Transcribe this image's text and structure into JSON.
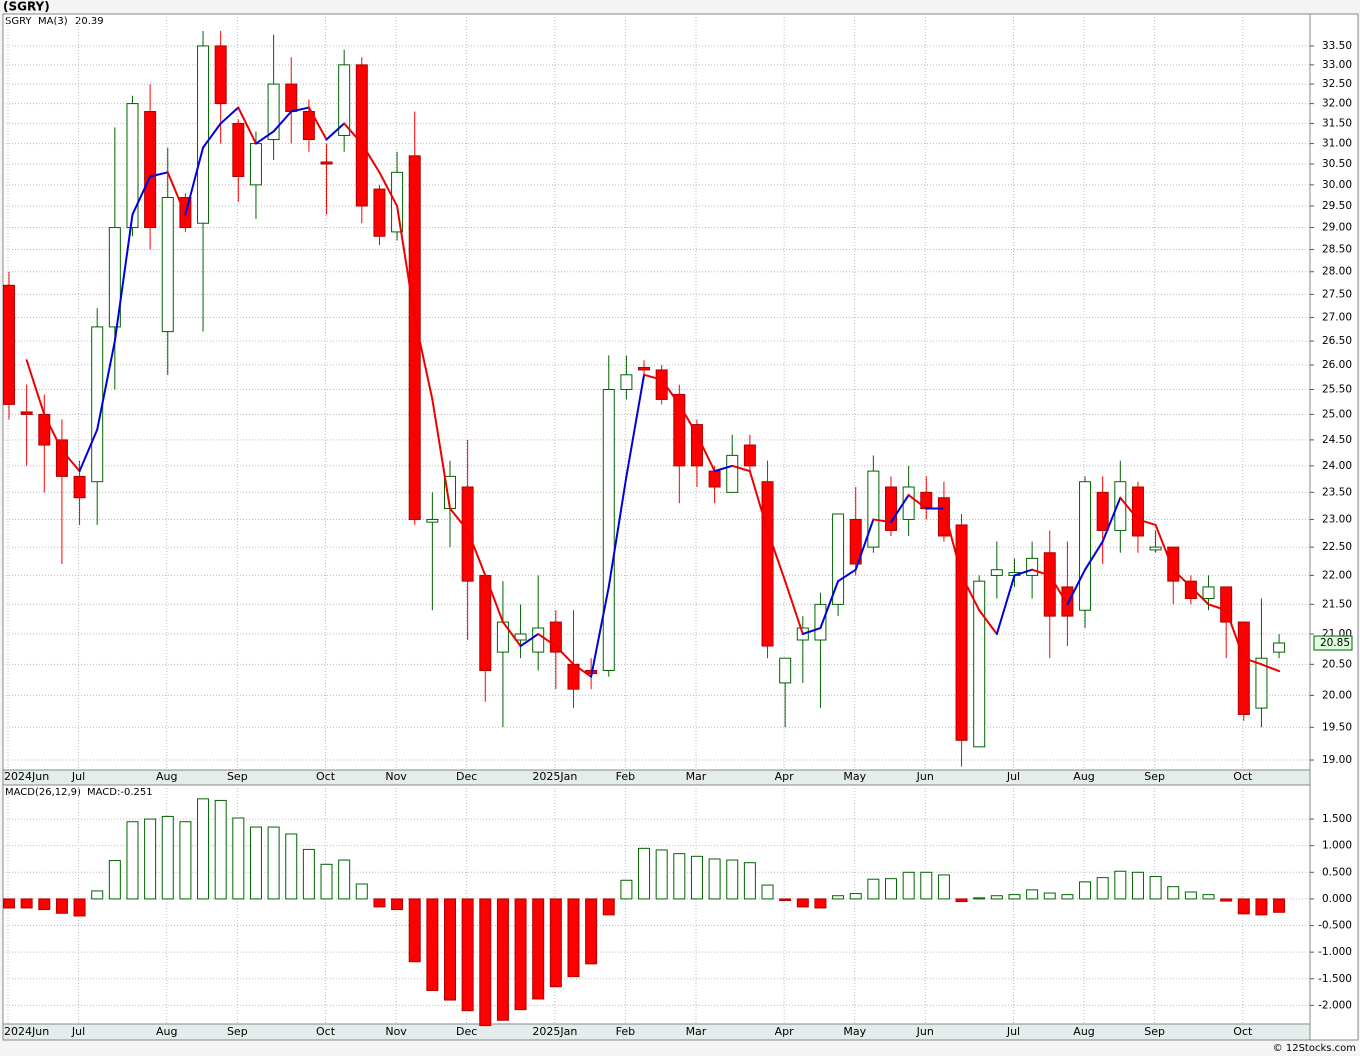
{
  "chart_data": [
    {
      "type": "candlestick",
      "title": "(SGRY)",
      "symbol": "SGRY",
      "categories": [
        "2024Jun",
        null,
        null,
        null,
        "Jul",
        null,
        null,
        null,
        null,
        "Aug",
        null,
        null,
        null,
        "Sep",
        null,
        null,
        null,
        null,
        "Oct",
        null,
        null,
        null,
        "Nov",
        null,
        null,
        null,
        "Dec",
        null,
        null,
        null,
        null,
        "2025Jan",
        null,
        null,
        null,
        "Feb",
        null,
        null,
        null,
        "Mar",
        null,
        null,
        null,
        null,
        "Apr",
        null,
        null,
        null,
        "May",
        null,
        null,
        null,
        "Jun",
        null,
        null,
        null,
        null,
        "Jul",
        null,
        null,
        null,
        "Aug",
        null,
        null,
        null,
        "Sep",
        null,
        null,
        null,
        null,
        "Oct",
        null,
        null
      ],
      "open": [
        27.7,
        25.05,
        25.0,
        24.5,
        23.8,
        23.7,
        26.8,
        29.0,
        31.8,
        26.7,
        29.7,
        29.1,
        33.5,
        31.5,
        30.0,
        31.1,
        32.5,
        31.8,
        30.55,
        31.2,
        33.0,
        29.9,
        28.9,
        30.7,
        22.95,
        23.2,
        23.6,
        22.0,
        20.7,
        20.9,
        20.7,
        21.2,
        20.5,
        20.4,
        20.4,
        25.5,
        25.95,
        25.9,
        25.4,
        24.8,
        23.9,
        23.5,
        24.4,
        23.7,
        20.2,
        20.9,
        20.9,
        21.5,
        23.0,
        22.5,
        23.6,
        23.0,
        23.5,
        23.4,
        22.9,
        19.2,
        22.0,
        22.0,
        22.0,
        22.4,
        21.8,
        21.4,
        23.5,
        22.8,
        23.6,
        22.45,
        22.5,
        21.9,
        21.6,
        21.8,
        21.2,
        19.8,
        20.7
      ],
      "high": [
        28.0,
        25.6,
        25.4,
        24.9,
        24.1,
        27.2,
        31.4,
        32.2,
        32.5,
        30.9,
        29.8,
        33.9,
        33.9,
        31.6,
        31.3,
        33.8,
        33.2,
        32.1,
        31.0,
        33.4,
        33.2,
        30.0,
        30.8,
        31.8,
        23.5,
        24.1,
        24.5,
        22.0,
        21.9,
        21.5,
        22.0,
        21.4,
        21.4,
        20.6,
        26.2,
        26.2,
        26.1,
        26.0,
        25.6,
        24.9,
        24.0,
        24.6,
        24.6,
        24.1,
        20.6,
        21.3,
        21.7,
        23.1,
        23.6,
        24.2,
        23.8,
        24.0,
        23.8,
        23.7,
        23.1,
        22.0,
        22.6,
        22.3,
        22.6,
        22.8,
        22.6,
        23.8,
        23.8,
        24.1,
        23.7,
        22.8,
        22.5,
        22.0,
        22.0,
        21.8,
        21.2,
        21.6,
        21.0
      ],
      "low": [
        24.9,
        24.0,
        23.5,
        22.2,
        22.9,
        22.9,
        25.5,
        28.8,
        28.5,
        25.8,
        28.9,
        26.7,
        31.0,
        29.6,
        29.2,
        30.6,
        31.0,
        30.8,
        29.3,
        30.8,
        29.1,
        28.6,
        28.7,
        22.9,
        21.4,
        22.5,
        20.9,
        19.9,
        19.5,
        20.6,
        20.4,
        20.1,
        19.8,
        20.1,
        20.3,
        25.3,
        25.7,
        25.2,
        23.3,
        23.6,
        23.3,
        23.5,
        23.9,
        20.6,
        19.5,
        20.2,
        19.8,
        21.3,
        22.0,
        22.4,
        22.7,
        22.7,
        23.0,
        22.6,
        18.9,
        19.2,
        21.6,
        21.8,
        21.6,
        20.6,
        20.8,
        21.1,
        22.2,
        22.4,
        22.4,
        22.4,
        21.5,
        21.5,
        21.4,
        20.6,
        19.6,
        19.5,
        20.6
      ],
      "close": [
        25.2,
        25.0,
        24.4,
        23.8,
        23.4,
        26.8,
        29.0,
        32.0,
        29.0,
        29.7,
        29.0,
        33.5,
        32.0,
        30.2,
        31.0,
        32.5,
        31.8,
        31.1,
        30.5,
        33.0,
        29.5,
        28.8,
        30.3,
        23.0,
        23.0,
        23.8,
        21.9,
        20.4,
        21.2,
        21.0,
        21.1,
        20.7,
        20.1,
        20.35,
        25.5,
        25.8,
        25.9,
        25.3,
        24.0,
        24.0,
        23.6,
        24.2,
        24.0,
        20.8,
        20.6,
        21.1,
        21.5,
        23.1,
        22.2,
        23.9,
        22.8,
        23.6,
        23.2,
        22.7,
        19.3,
        21.9,
        22.1,
        22.05,
        22.3,
        21.3,
        21.3,
        23.7,
        22.8,
        23.7,
        22.7,
        22.5,
        21.9,
        21.6,
        21.8,
        21.2,
        19.7,
        20.6,
        20.85
      ],
      "ma": {
        "name": "MA(3)",
        "rising_color": "#0000dd",
        "falling_color": "#ee0000",
        "values": [
          null,
          26.1,
          25.0,
          24.3,
          23.9,
          24.7,
          26.5,
          29.3,
          30.2,
          30.3,
          29.3,
          30.9,
          31.5,
          31.9,
          31.0,
          31.3,
          31.8,
          31.9,
          31.1,
          31.5,
          31.0,
          30.3,
          29.5,
          27.0,
          25.3,
          23.2,
          22.8,
          22.0,
          21.2,
          20.8,
          21.0,
          20.8,
          20.5,
          20.3,
          21.8,
          23.8,
          25.8,
          25.7,
          25.2,
          24.6,
          23.9,
          24.0,
          23.9,
          22.8,
          21.9,
          21.0,
          21.1,
          21.9,
          22.1,
          23.0,
          22.95,
          23.45,
          23.2,
          23.2,
          22.0,
          21.4,
          21.0,
          22.0,
          22.1,
          22.0,
          21.5,
          22.1,
          22.6,
          23.4,
          23.0,
          22.9,
          22.1,
          21.8,
          21.5,
          21.4,
          20.6,
          20.5,
          20.39
        ]
      },
      "up_color": "#006400",
      "down_color": "#ff0000",
      "log_scale": true,
      "grid": true,
      "ylim": [
        18.85,
        34.36
      ],
      "yticks": [
        {
          "value": 19,
          "label": "19.00"
        },
        {
          "value": 19.5,
          "label": "19.50"
        },
        {
          "value": 20,
          "label": "20.00"
        },
        {
          "value": 20.5,
          "label": "20.50"
        },
        {
          "value": 21,
          "label": "21.00"
        },
        {
          "value": 21.5,
          "label": "21.50"
        },
        {
          "value": 22,
          "label": "22.00"
        },
        {
          "value": 22.5,
          "label": "22.50"
        },
        {
          "value": 23,
          "label": "23.00"
        },
        {
          "value": 23.5,
          "label": "23.50"
        },
        {
          "value": 24,
          "label": "24.00"
        },
        {
          "value": 24.5,
          "label": "24.50"
        },
        {
          "value": 25,
          "label": "25.00"
        },
        {
          "value": 25.5,
          "label": "25.50"
        },
        {
          "value": 26,
          "label": "26.00"
        },
        {
          "value": 26.5,
          "label": "26.50"
        },
        {
          "value": 27,
          "label": "27.00"
        },
        {
          "value": 27.5,
          "label": "27.50"
        },
        {
          "value": 28,
          "label": "28.00"
        },
        {
          "value": 28.5,
          "label": "28.50"
        },
        {
          "value": 29,
          "label": "29.00"
        },
        {
          "value": 29.5,
          "label": "29.50"
        },
        {
          "value": 30,
          "label": "30.00"
        },
        {
          "value": 30.5,
          "label": "30.50"
        },
        {
          "value": 31,
          "label": "31.00"
        },
        {
          "value": 31.5,
          "label": "31.50"
        },
        {
          "value": 32,
          "label": "32.00"
        },
        {
          "value": 32.5,
          "label": "32.50"
        },
        {
          "value": 33,
          "label": "33.00"
        },
        {
          "value": 33.5,
          "label": "33.50"
        }
      ]
    },
    {
      "type": "bar",
      "title": "MACD(26,12,9)",
      "value_text": "MACD:-0.251",
      "categories": [
        "2024Jun",
        null,
        null,
        null,
        "Jul",
        null,
        null,
        null,
        null,
        "Aug",
        null,
        null,
        null,
        "Sep",
        null,
        null,
        null,
        null,
        "Oct",
        null,
        null,
        null,
        "Nov",
        null,
        null,
        null,
        "Dec",
        null,
        null,
        null,
        null,
        "2025Jan",
        null,
        null,
        null,
        "Feb",
        null,
        null,
        null,
        "Mar",
        null,
        null,
        null,
        null,
        "Apr",
        null,
        null,
        null,
        "May",
        null,
        null,
        null,
        "Jun",
        null,
        null,
        null,
        null,
        "Jul",
        null,
        null,
        null,
        "Aug",
        null,
        null,
        null,
        "Sep",
        null,
        null,
        null,
        null,
        "Oct",
        null,
        null
      ],
      "values": [
        -0.17,
        -0.17,
        -0.2,
        -0.27,
        -0.32,
        0.15,
        0.72,
        1.45,
        1.5,
        1.55,
        1.45,
        1.88,
        1.85,
        1.52,
        1.35,
        1.35,
        1.22,
        0.93,
        0.65,
        0.73,
        0.28,
        -0.15,
        -0.2,
        -1.18,
        -1.72,
        -1.9,
        -2.1,
        -2.38,
        -2.28,
        -2.08,
        -1.88,
        -1.65,
        -1.46,
        -1.22,
        -0.3,
        0.35,
        0.95,
        0.92,
        0.85,
        0.8,
        0.75,
        0.73,
        0.68,
        0.26,
        -0.03,
        -0.15,
        -0.17,
        0.06,
        0.1,
        0.37,
        0.38,
        0.5,
        0.5,
        0.45,
        -0.05,
        0.02,
        0.06,
        0.08,
        0.17,
        0.11,
        0.08,
        0.32,
        0.4,
        0.52,
        0.5,
        0.42,
        0.23,
        0.13,
        0.08,
        -0.04,
        -0.28,
        -0.3,
        -0.251
      ],
      "positive_color": "#006400",
      "negative_color": "#ff0000",
      "grid": true,
      "ylim": [
        -2.35,
        2.14
      ],
      "yticks": [
        {
          "value": -2,
          "label": "-2.000"
        },
        {
          "value": -1.5,
          "label": "-1.500"
        },
        {
          "value": -1,
          "label": "-1.000"
        },
        {
          "value": -0.5,
          "label": "-0.500"
        },
        {
          "value": 0,
          "label": "0.000"
        },
        {
          "value": 0.5,
          "label": "0.500"
        },
        {
          "value": 1,
          "label": "1.000"
        },
        {
          "value": 1.5,
          "label": "1.500"
        }
      ]
    }
  ],
  "footer": "© 12Stocks.com"
}
